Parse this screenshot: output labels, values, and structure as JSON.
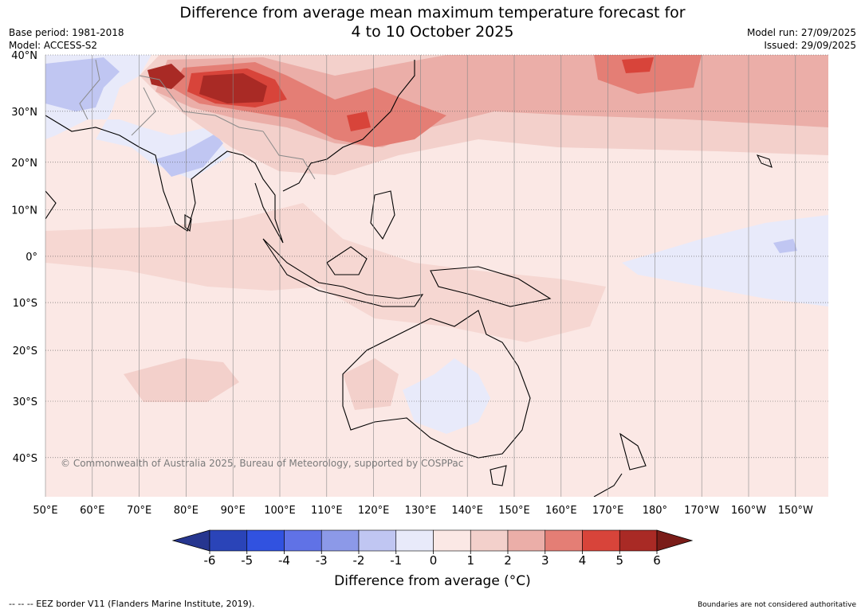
{
  "title_line1": "Difference from average mean maximum temperature forecast for",
  "title_line2": "4 to 10 October 2025",
  "base_period": "Base period: 1981-2018",
  "model": "Model: ACCESS-S2",
  "model_run": "Model run: 27/09/2025",
  "issued": "Issued: 29/09/2025",
  "lat_labels": [
    "40°N",
    "30°N",
    "20°N",
    "10°N",
    "0°",
    "10°S",
    "20°S",
    "30°S",
    "40°S"
  ],
  "lat_values": [
    40,
    30,
    20,
    10,
    0,
    -10,
    -20,
    -30,
    -40
  ],
  "lon_labels": [
    "50°E",
    "60°E",
    "70°E",
    "80°E",
    "90°E",
    "100°E",
    "110°E",
    "120°E",
    "130°E",
    "140°E",
    "150°E",
    "160°E",
    "170°E",
    "180°",
    "170°W",
    "160°W",
    "150°W"
  ],
  "lon_values": [
    50,
    60,
    70,
    80,
    90,
    100,
    110,
    120,
    130,
    140,
    150,
    160,
    170,
    180,
    190,
    200,
    210
  ],
  "copyright": "© Commonwealth of Australia 2025, Bureau of Meteorology, supported by COSPPac",
  "colorbar": {
    "label": "Difference from average (°C)",
    "ticks": [
      "-6",
      "-5",
      "-4",
      "-3",
      "-2",
      "-1",
      "0",
      "1",
      "2",
      "3",
      "4",
      "5",
      "6"
    ],
    "tick_values": [
      -6,
      -5,
      -4,
      -3,
      -2,
      -1,
      0,
      1,
      2,
      3,
      4,
      5,
      6
    ],
    "colors": [
      "#26368f",
      "#2a44b8",
      "#3152e0",
      "#6072e6",
      "#8c99e8",
      "#c0c6f2",
      "#e8eafa",
      "#fbe8e5",
      "#f3d0cb",
      "#ebaea8",
      "#e47e75",
      "#d8443a",
      "#a92a25",
      "#7a1c18"
    ]
  },
  "footer_left": "--  --  -- EEZ border V11 (Flanders Marine Institute, 2019).",
  "footer_right": "Boundaries are not considered authoritative"
}
